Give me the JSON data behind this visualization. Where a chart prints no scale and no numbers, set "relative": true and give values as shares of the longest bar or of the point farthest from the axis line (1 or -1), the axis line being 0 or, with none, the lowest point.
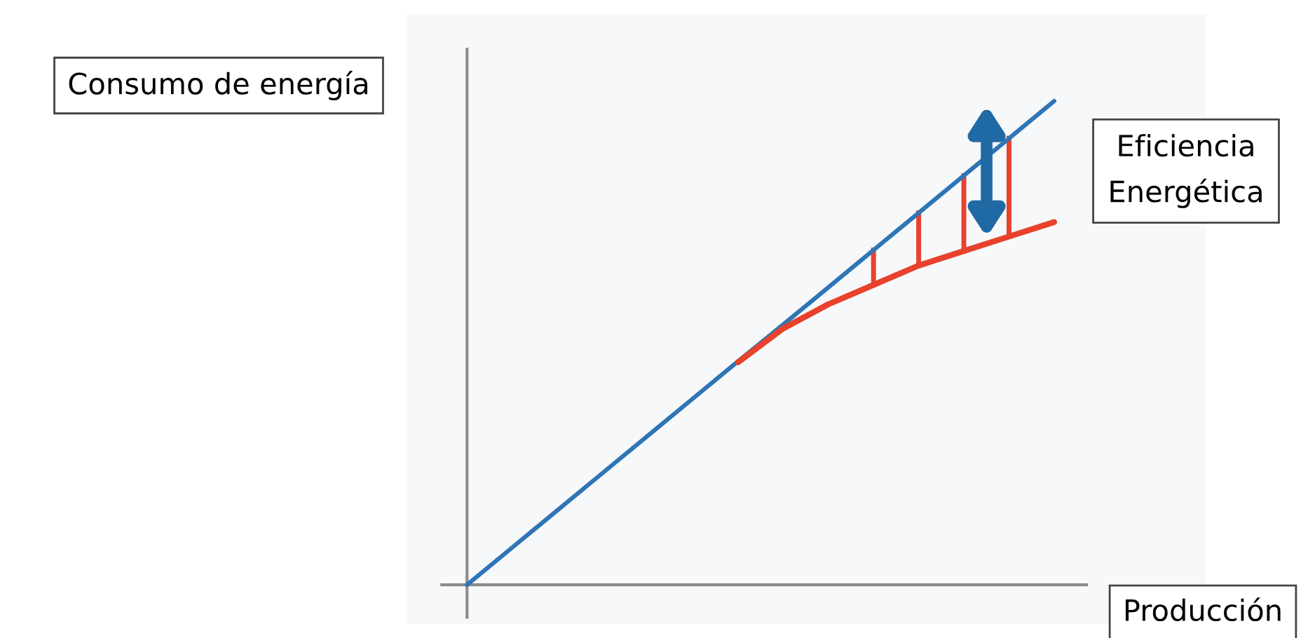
{
  "chart_data": {
    "type": "line",
    "relative": true,
    "ylabel": "Consumo de energía",
    "xlabel": "Producción",
    "annotations": [
      "Eficiencia\nEnergética"
    ],
    "grid": false,
    "legend": false,
    "marker": "none",
    "line_style": "solid",
    "categories": [
      null,
      null,
      null,
      null,
      null,
      null,
      null,
      null,
      null,
      null,
      null,
      null,
      null,
      null
    ],
    "series": [
      {
        "color": "#2e75b6",
        "values": [
          0,
          0.077,
          0.154,
          0.231,
          0.308,
          0.385,
          0.462,
          0.538,
          0.615,
          0.692,
          0.769,
          0.846,
          0.923,
          1
        ]
      },
      {
        "color": "#e8412c",
        "values": [
          null,
          null,
          null,
          null,
          null,
          null,
          0.46,
          0.53,
          0.58,
          0.62,
          0.66,
          0.69,
          0.72,
          0.75
        ]
      }
    ]
  }
}
